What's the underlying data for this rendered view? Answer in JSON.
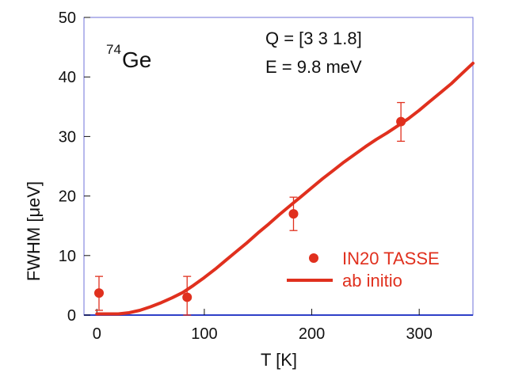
{
  "chart_data": {
    "type": "scatter",
    "title": "",
    "xlabel": "T [K]",
    "ylabel": "FWHM [μeV]",
    "xlim": [
      -12,
      350
    ],
    "ylim": [
      0,
      50
    ],
    "xticks": [
      0,
      100,
      200,
      300
    ],
    "yticks": [
      0,
      10,
      20,
      30,
      40,
      50
    ],
    "grid": false,
    "legend_position": "bottom-right",
    "colors": {
      "series": "#e0301e",
      "frame": "#6f72d8",
      "baseline": "#2e40c8"
    },
    "annotations": {
      "isotope_sup": "74",
      "isotope": "Ge",
      "q_line": "Q = [3 3 1.8]",
      "e_line": "E = 9.8 meV"
    },
    "series": [
      {
        "name": "IN20 TASSE",
        "kind": "points",
        "x": [
          2,
          84,
          183,
          283
        ],
        "y": [
          3.7,
          3.0,
          17.0,
          32.5
        ],
        "err_low": [
          0.8,
          0.0,
          14.2,
          29.2
        ],
        "err_high": [
          6.5,
          6.5,
          19.8,
          35.7
        ]
      },
      {
        "name": "ab initio",
        "kind": "line",
        "x": [
          0,
          10,
          20,
          30,
          40,
          50,
          60,
          70,
          80,
          90,
          100,
          110,
          120,
          130,
          140,
          150,
          160,
          170,
          180,
          190,
          200,
          210,
          220,
          230,
          240,
          250,
          260,
          270,
          280,
          290,
          300,
          310,
          320,
          330,
          340,
          350
        ],
        "y": [
          0.2,
          0.2,
          0.2,
          0.4,
          0.8,
          1.4,
          2.1,
          2.9,
          3.8,
          5.0,
          6.3,
          7.7,
          9.2,
          10.7,
          12.2,
          13.8,
          15.3,
          16.9,
          18.4,
          19.9,
          21.4,
          22.9,
          24.3,
          25.7,
          27.0,
          28.3,
          29.5,
          30.6,
          31.8,
          33.0,
          34.4,
          35.9,
          37.4,
          38.9,
          40.6,
          42.3
        ]
      }
    ]
  }
}
